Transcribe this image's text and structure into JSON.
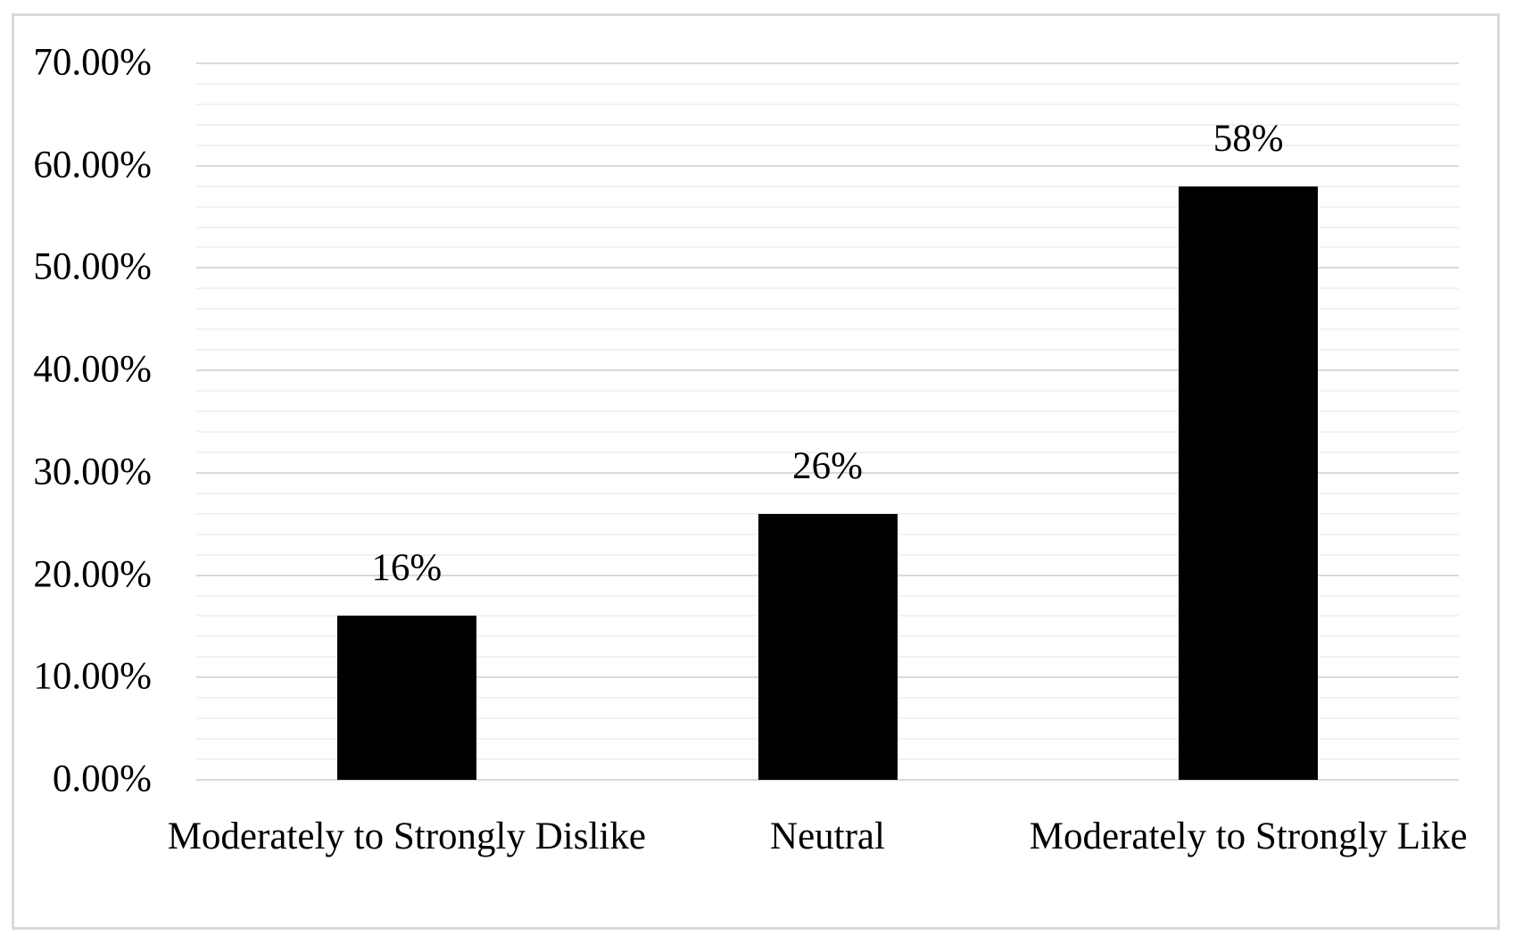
{
  "chart_data": {
    "type": "bar",
    "title": "",
    "xlabel": "",
    "ylabel": "",
    "categories": [
      "Moderately to Strongly Dislike",
      "Neutral",
      "Moderately to Strongly Like"
    ],
    "values": [
      16,
      26,
      58
    ],
    "data_labels": [
      "16%",
      "26%",
      "58%"
    ],
    "y_ticks": [
      {
        "value": 0,
        "label": "0.00%"
      },
      {
        "value": 10,
        "label": "10.00%"
      },
      {
        "value": 20,
        "label": "20.00%"
      },
      {
        "value": 30,
        "label": "30.00%"
      },
      {
        "value": 40,
        "label": "40.00%"
      },
      {
        "value": 50,
        "label": "50.00%"
      },
      {
        "value": 60,
        "label": "60.00%"
      },
      {
        "value": 70,
        "label": "70.00%"
      }
    ],
    "ylim": [
      0,
      70
    ],
    "major_unit": 10,
    "minor_unit": 2,
    "grid": "horizontal, major and minor lines",
    "legend": "none",
    "colors": {
      "bar": "#000000",
      "major_gridline": "#d9d9d9",
      "minor_gridline": "#f2f2f2",
      "frame_border": "#d9d9d9",
      "text": "#000000",
      "background": "#ffffff"
    }
  }
}
